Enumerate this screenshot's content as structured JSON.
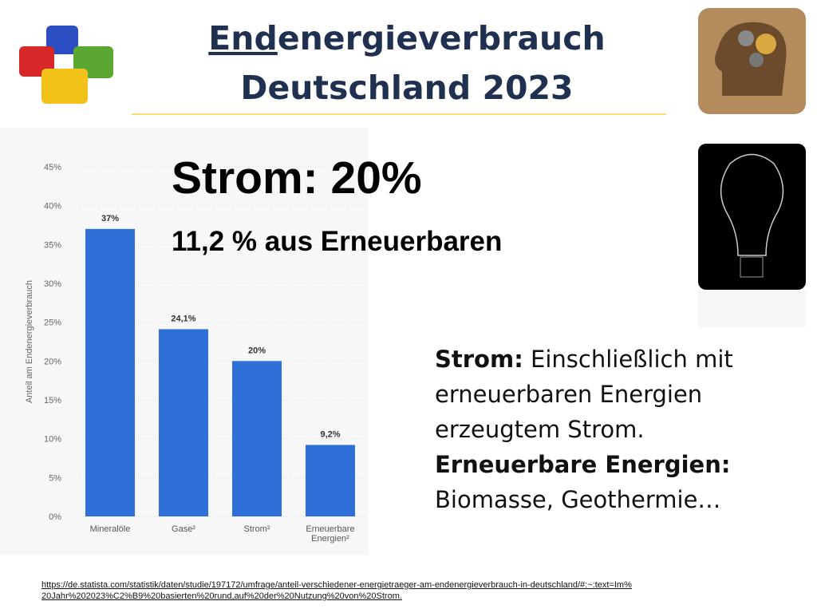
{
  "title": {
    "underlined": "End",
    "rest": "energieverbrauch",
    "line2": "Deutschland 2023"
  },
  "headline": "Strom: 20%",
  "subline": "11,2 % aus Erneuerbaren",
  "notes": [
    {
      "bold": "Strom:",
      "text": " Einschließlich mit erneuerbaren Energien erzeugtem Strom."
    },
    {
      "bold": "Erneuerbare Energien:",
      "text": " Biomasse, Geothermie…"
    }
  ],
  "source": "https://de.statista.com/statistik/daten/studie/197172/umfrage/anteil-verschiedener-energietraeger-am-endenergieverbrauch-in-deutschland/#:~:text=Im%20Jahr%202023%C2%B9%20basierten%20rund,auf%20der%20Nutzung%20von%20Strom.",
  "chart_data": {
    "type": "bar",
    "ylabel": "Anteil am Endenergieverbrauch",
    "categories": [
      "Mineralöle",
      "Gase²",
      "Strom²",
      "Erneuerbare Energien²"
    ],
    "values": [
      37,
      24.1,
      20,
      9.2
    ],
    "value_labels": [
      "37%",
      "24,1%",
      "20%",
      "9,2%"
    ],
    "color": "#2f6fd8",
    "ylim": [
      0,
      45
    ],
    "yticks": [
      {
        "value": 0,
        "label": "0%"
      },
      {
        "value": 5,
        "label": "5%"
      },
      {
        "value": 10,
        "label": "10%"
      },
      {
        "value": 15,
        "label": "15%"
      },
      {
        "value": 20,
        "label": "20%"
      },
      {
        "value": 25,
        "label": "25%"
      },
      {
        "value": 30,
        "label": "30%"
      },
      {
        "value": 35,
        "label": "35%"
      },
      {
        "value": 40,
        "label": "40%"
      },
      {
        "value": 45,
        "label": "45%"
      }
    ],
    "grid": true
  }
}
